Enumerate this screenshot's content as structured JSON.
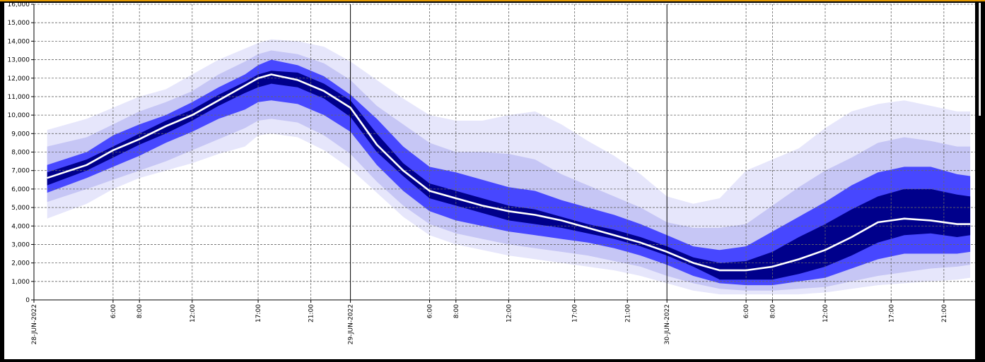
{
  "colors": {
    "background": "#ffffff",
    "band_outer": "#e6e6fb",
    "band_mid": "#c6c6f5",
    "band_inner": "#4747ff",
    "band_core": "#00008b",
    "median": "#ffffff",
    "grid": "#666666"
  },
  "chart_data": {
    "type": "area",
    "title": "",
    "xlabel": "",
    "ylabel": "",
    "grid": true,
    "ylim": [
      0,
      16000
    ],
    "y_ticks": [
      0,
      1000,
      2000,
      3000,
      4000,
      5000,
      6000,
      7000,
      8000,
      9000,
      10000,
      11000,
      12000,
      13000,
      14000,
      15000,
      16000
    ],
    "y_tick_labels": [
      "0",
      "1,000",
      "2,000",
      "3,000",
      "4,000",
      "5,000",
      "6,000",
      "7,000",
      "8,000",
      "9,000",
      "10,000",
      "11,000",
      "12,000",
      "13,000",
      "14,000",
      "15,000",
      "16,000"
    ],
    "xlim": [
      0,
      71
    ],
    "x_ticks": [
      {
        "x": 0,
        "label": "28-JUN-2022",
        "major": true
      },
      {
        "x": 6,
        "label": "6:00",
        "major": false
      },
      {
        "x": 8,
        "label": "8:00",
        "major": false
      },
      {
        "x": 12,
        "label": "12:00",
        "major": false
      },
      {
        "x": 17,
        "label": "17:00",
        "major": false
      },
      {
        "x": 21,
        "label": "21:00",
        "major": false
      },
      {
        "x": 24,
        "label": "29-JUN-2022",
        "major": true
      },
      {
        "x": 30,
        "label": "6:00",
        "major": false
      },
      {
        "x": 32,
        "label": "8:00",
        "major": false
      },
      {
        "x": 36,
        "label": "12:00",
        "major": false
      },
      {
        "x": 41,
        "label": "17:00",
        "major": false
      },
      {
        "x": 45,
        "label": "21:00",
        "major": false
      },
      {
        "x": 48,
        "label": "30-JUN-2022",
        "major": true
      },
      {
        "x": 54,
        "label": "6:00",
        "major": false
      },
      {
        "x": 56,
        "label": "8:00",
        "major": false
      },
      {
        "x": 60,
        "label": "12:00",
        "major": false
      },
      {
        "x": 65,
        "label": "17:00",
        "major": false
      },
      {
        "x": 69,
        "label": "21:00",
        "major": false
      }
    ],
    "x": [
      1,
      4,
      6,
      8,
      10,
      12,
      14,
      16,
      17,
      18,
      20,
      22,
      24,
      26,
      28,
      30,
      32,
      34,
      36,
      38,
      40,
      42,
      44,
      46,
      48,
      50,
      52,
      54,
      56,
      58,
      60,
      62,
      64,
      66,
      68,
      70,
      71
    ],
    "series": [
      {
        "band": "outer",
        "low": [
          4400,
          5200,
          6000,
          6600,
          7000,
          7400,
          7900,
          8300,
          8900,
          9000,
          8800,
          8100,
          7100,
          5800,
          4500,
          3500,
          3000,
          2700,
          2400,
          2200,
          2000,
          1800,
          1600,
          1300,
          900,
          500,
          300,
          300,
          300,
          300,
          400,
          600,
          800,
          900,
          1000,
          1100,
          1200
        ],
        "high": [
          9200,
          9800,
          10400,
          11000,
          11400,
          12200,
          13000,
          13600,
          13900,
          14100,
          14000,
          13700,
          12900,
          11900,
          10900,
          10000,
          9700,
          9700,
          10000,
          10200,
          9500,
          8600,
          7800,
          6800,
          5600,
          5200,
          5500,
          7000,
          7600,
          8200,
          9300,
          10200,
          10600,
          10800,
          10500,
          10200,
          10200
        ]
      },
      {
        "band": "mid",
        "low": [
          5300,
          6000,
          6500,
          7000,
          7500,
          8100,
          8700,
          9300,
          9700,
          9800,
          9600,
          8900,
          7900,
          6400,
          5100,
          4100,
          3600,
          3300,
          3000,
          2800,
          2600,
          2400,
          2100,
          1800,
          1300,
          900,
          600,
          500,
          500,
          600,
          700,
          1000,
          1300,
          1500,
          1700,
          1800,
          1900
        ],
        "high": [
          8300,
          8800,
          9500,
          10200,
          10700,
          11300,
          12200,
          12900,
          13300,
          13500,
          13300,
          12800,
          11900,
          10500,
          9500,
          8500,
          8000,
          8000,
          7900,
          7600,
          6800,
          6200,
          5600,
          5000,
          4200,
          3900,
          3900,
          4100,
          5100,
          6100,
          7000,
          7700,
          8500,
          8800,
          8600,
          8300,
          8300
        ]
      },
      {
        "band": "inner",
        "low": [
          5800,
          6600,
          7200,
          7800,
          8500,
          9100,
          9800,
          10300,
          10700,
          10800,
          10600,
          10000,
          9100,
          7300,
          5900,
          4800,
          4300,
          4000,
          3700,
          3500,
          3300,
          3100,
          2800,
          2400,
          1900,
          1300,
          900,
          800,
          800,
          1000,
          1200,
          1700,
          2200,
          2500,
          2500,
          2500,
          2600
        ]
      },
      {
        "band": "inner",
        "high": [
          7300,
          8000,
          8900,
          9500,
          10000,
          10700,
          11500,
          12200,
          12700,
          13000,
          12700,
          12100,
          11100,
          9800,
          8300,
          7200,
          6900,
          6500,
          6100,
          5900,
          5400,
          5000,
          4600,
          4100,
          3500,
          2900,
          2700,
          2900,
          3700,
          4500,
          5300,
          6200,
          6900,
          7200,
          7200,
          6800,
          6700
        ]
      },
      {
        "band": "core",
        "low": [
          6200,
          7000,
          7700,
          8400,
          9000,
          9700,
          10500,
          11200,
          11500,
          11700,
          11500,
          10900,
          9900,
          8000,
          6700,
          5500,
          5100,
          4700,
          4300,
          4100,
          3900,
          3600,
          3300,
          2900,
          2400,
          1800,
          1100,
          1100,
          1100,
          1400,
          1800,
          2400,
          3100,
          3500,
          3600,
          3400,
          3500
        ]
      },
      {
        "band": "core",
        "high": [
          6900,
          7600,
          8300,
          9000,
          9700,
          10300,
          11100,
          11800,
          12200,
          12400,
          12300,
          11700,
          10800,
          9000,
          7400,
          6300,
          5900,
          5500,
          5100,
          4900,
          4500,
          4100,
          3800,
          3400,
          2900,
          2300,
          2000,
          2100,
          2600,
          3400,
          4100,
          4900,
          5600,
          6000,
          6000,
          5700,
          5600
        ]
      },
      {
        "name": "",
        "band": "median",
        "values": [
          6600,
          7300,
          8100,
          8700,
          9400,
          10000,
          10800,
          11600,
          12000,
          12200,
          11900,
          11300,
          10400,
          8400,
          7000,
          5900,
          5500,
          5100,
          4800,
          4600,
          4300,
          3900,
          3500,
          3100,
          2600,
          2000,
          1600,
          1600,
          1800,
          2200,
          2700,
          3400,
          4200,
          4400,
          4300,
          4100,
          4100
        ]
      }
    ]
  }
}
